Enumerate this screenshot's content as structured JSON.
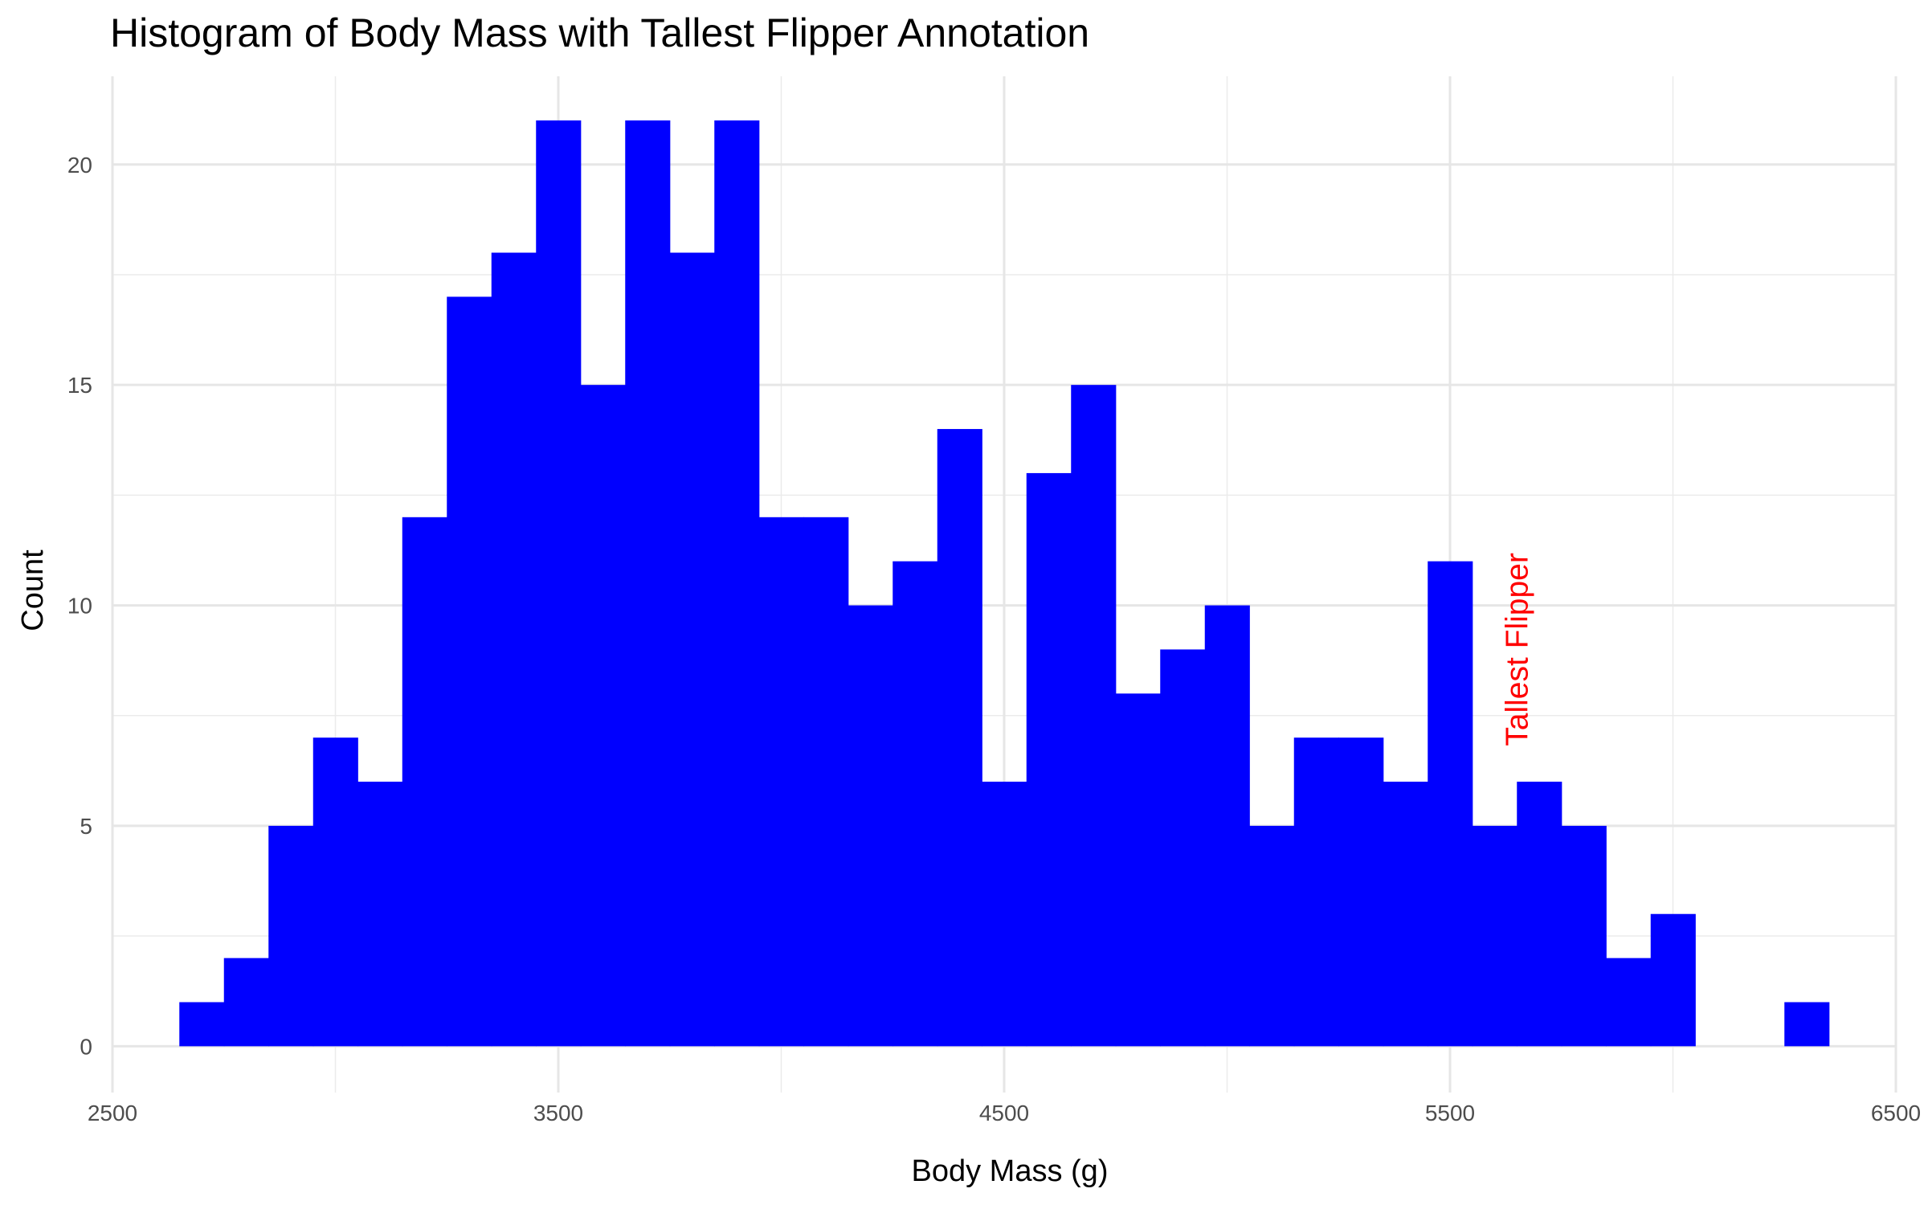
{
  "chart_data": {
    "type": "bar",
    "title": "Histogram of Body Mass with Tallest Flipper Annotation",
    "xlabel": "Body Mass (g)",
    "ylabel": "Count",
    "xlim": [
      2500,
      6500
    ],
    "ylim": [
      0,
      21
    ],
    "x_ticks": [
      2500,
      3500,
      4500,
      5500,
      6500
    ],
    "y_ticks": [
      0,
      5,
      10,
      15,
      20
    ],
    "bin_start": 2650,
    "bin_width": 100,
    "values": [
      1,
      2,
      5,
      7,
      6,
      12,
      17,
      18,
      21,
      15,
      21,
      18,
      21,
      12,
      12,
      10,
      11,
      14,
      6,
      13,
      15,
      8,
      9,
      10,
      5,
      7,
      7,
      6,
      11,
      5,
      6,
      5,
      2,
      3,
      0,
      0,
      1
    ],
    "bar_color": "#0000ff",
    "grid": true,
    "annotation": {
      "text": "Tallest Flipper",
      "x": 5650,
      "y": 9,
      "color": "#ff0000",
      "rotation": 90
    }
  }
}
